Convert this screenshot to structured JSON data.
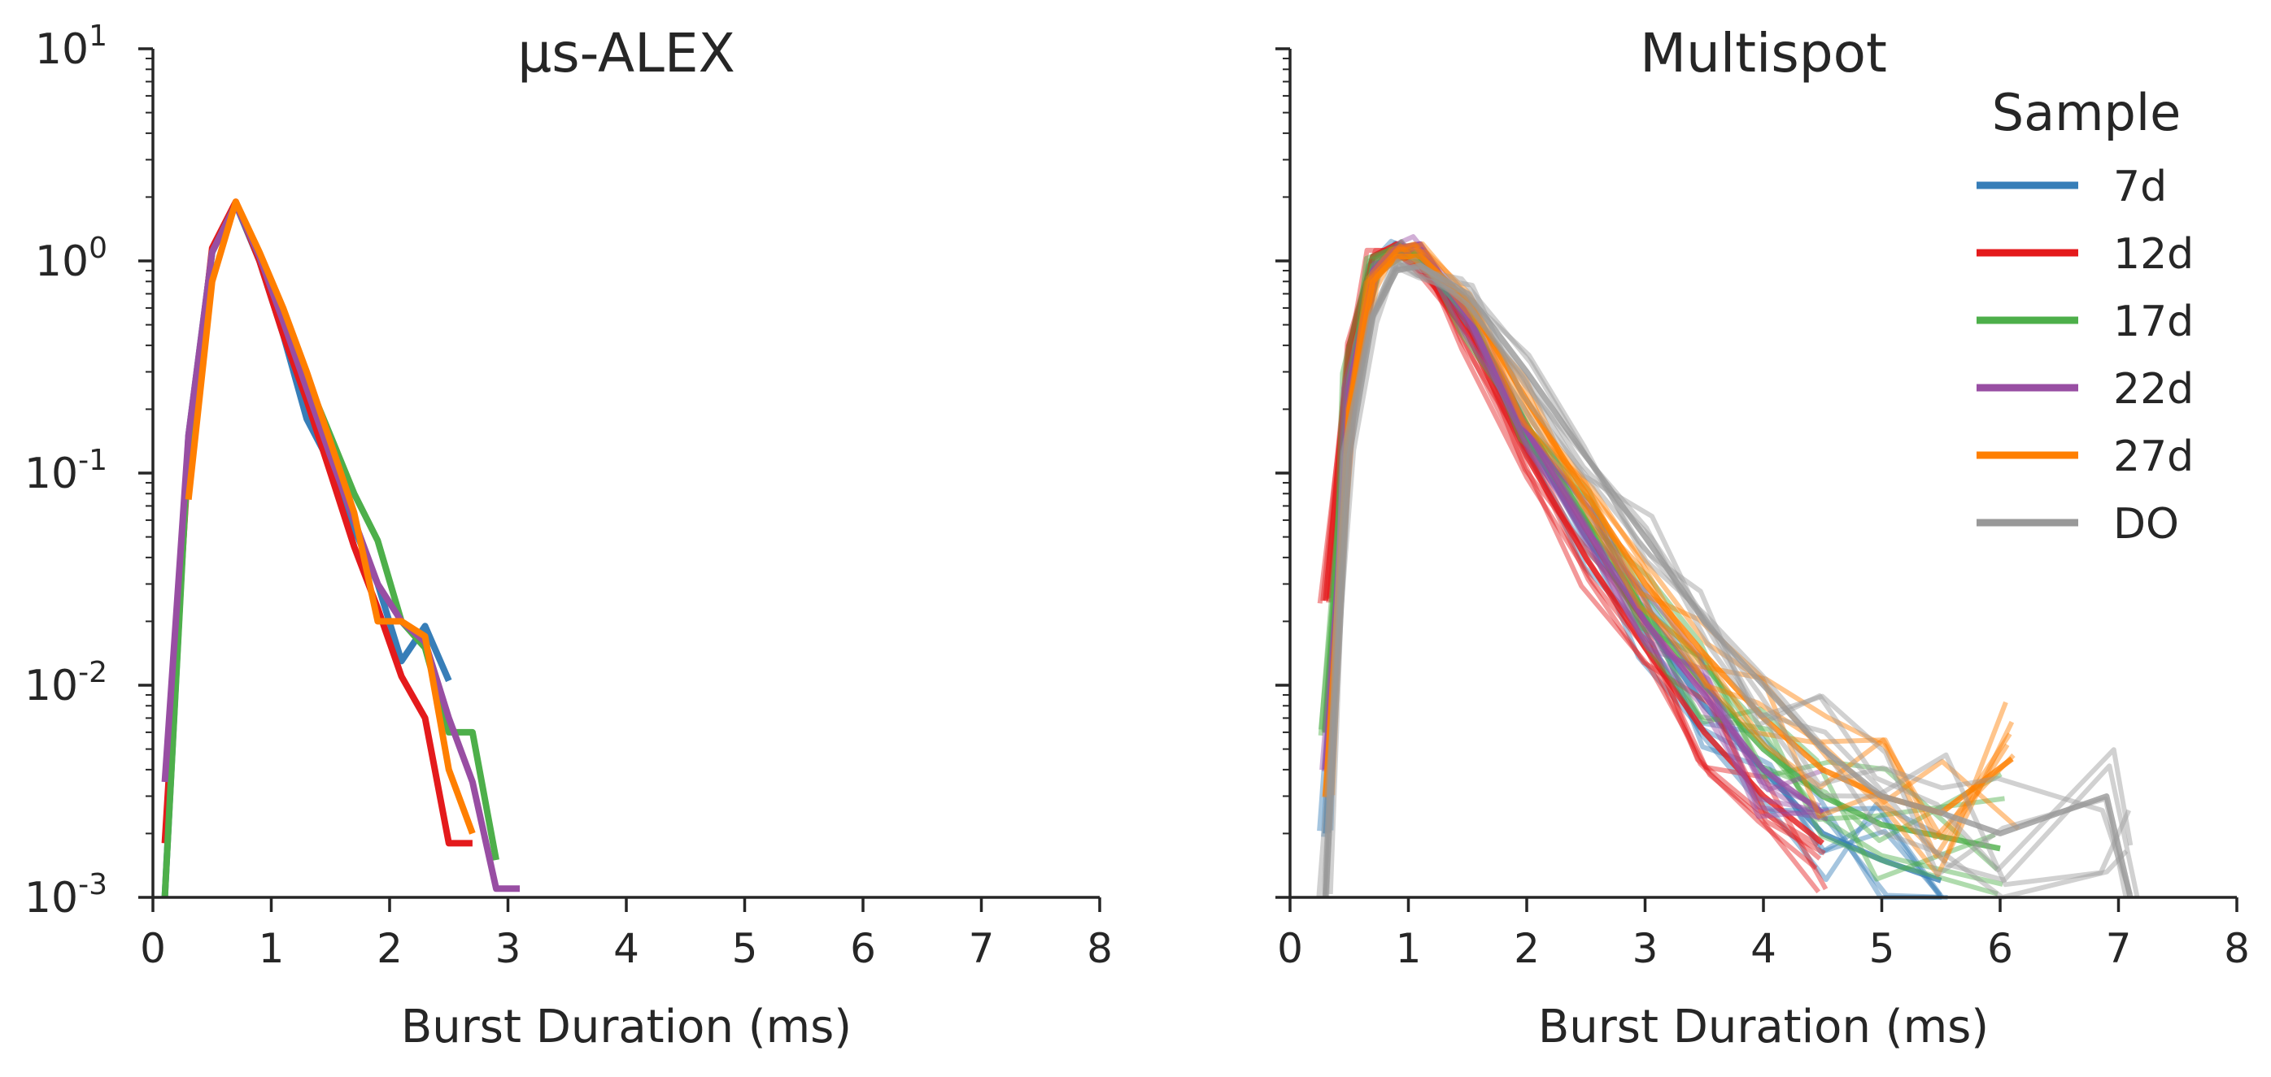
{
  "chart_data": [
    {
      "type": "line",
      "title": "μs-ALEX",
      "xlabel": "Burst Duration (ms)",
      "ylabel": "",
      "xlim": [
        0,
        8
      ],
      "ylim": [
        0.001,
        10
      ],
      "yscale": "log",
      "grid": false,
      "x_ticks": [
        "0",
        "1",
        "2",
        "3",
        "4",
        "5",
        "6",
        "7",
        "8"
      ],
      "y_ticks": [
        {
          "base": "10",
          "exp": "1"
        },
        {
          "base": "10",
          "exp": "0"
        },
        {
          "base": "10",
          "exp": "-1"
        },
        {
          "base": "10",
          "exp": "-2"
        },
        {
          "base": "10",
          "exp": "-3"
        }
      ],
      "series": [
        {
          "name": "7d",
          "color": "#377eb8",
          "points": [
            [
              0.1,
              0.001
            ],
            [
              0.3,
              0.15
            ],
            [
              0.5,
              1.1
            ],
            [
              0.7,
              1.85
            ],
            [
              0.9,
              1.0
            ],
            [
              1.1,
              0.45
            ],
            [
              1.3,
              0.18
            ],
            [
              1.5,
              0.11
            ],
            [
              1.7,
              0.055
            ],
            [
              1.9,
              0.03
            ],
            [
              2.1,
              0.013
            ],
            [
              2.3,
              0.019
            ],
            [
              2.5,
              0.0105
            ]
          ]
        },
        {
          "name": "12d",
          "color": "#e41a1c",
          "points": [
            [
              0.1,
              0.0018
            ],
            [
              0.3,
              0.12
            ],
            [
              0.5,
              1.15
            ],
            [
              0.7,
              1.9
            ],
            [
              0.9,
              1.0
            ],
            [
              1.1,
              0.45
            ],
            [
              1.3,
              0.22
            ],
            [
              1.5,
              0.1
            ],
            [
              1.7,
              0.045
            ],
            [
              1.9,
              0.023
            ],
            [
              2.1,
              0.011
            ],
            [
              2.3,
              0.007
            ],
            [
              2.5,
              0.0018
            ],
            [
              2.7,
              0.0018
            ]
          ]
        },
        {
          "name": "17d",
          "color": "#4daf4a",
          "points": [
            [
              0.1,
              0.001
            ],
            [
              0.3,
              0.14
            ],
            [
              0.5,
              1.1
            ],
            [
              0.7,
              1.85
            ],
            [
              0.9,
              1.05
            ],
            [
              1.1,
              0.55
            ],
            [
              1.3,
              0.28
            ],
            [
              1.5,
              0.15
            ],
            [
              1.7,
              0.08
            ],
            [
              1.9,
              0.048
            ],
            [
              2.1,
              0.02
            ],
            [
              2.3,
              0.015
            ],
            [
              2.5,
              0.006
            ],
            [
              2.7,
              0.006
            ],
            [
              2.9,
              0.0015
            ]
          ]
        },
        {
          "name": "22d",
          "color": "#984ea3",
          "points": [
            [
              0.1,
              0.0035
            ],
            [
              0.3,
              0.15
            ],
            [
              0.5,
              1.1
            ],
            [
              0.7,
              1.85
            ],
            [
              0.9,
              1.05
            ],
            [
              1.1,
              0.52
            ],
            [
              1.3,
              0.25
            ],
            [
              1.5,
              0.12
            ],
            [
              1.7,
              0.06
            ],
            [
              1.9,
              0.03
            ],
            [
              2.1,
              0.02
            ],
            [
              2.3,
              0.016
            ],
            [
              2.5,
              0.007
            ],
            [
              2.7,
              0.0035
            ],
            [
              2.9,
              0.0011
            ],
            [
              3.1,
              0.0011
            ]
          ]
        },
        {
          "name": "27d",
          "color": "#ff7f00",
          "points": [
            [
              0.3,
              0.075
            ],
            [
              0.5,
              0.8
            ],
            [
              0.7,
              1.9
            ],
            [
              0.9,
              1.1
            ],
            [
              1.1,
              0.6
            ],
            [
              1.3,
              0.3
            ],
            [
              1.5,
              0.14
            ],
            [
              1.7,
              0.065
            ],
            [
              1.9,
              0.02
            ],
            [
              2.1,
              0.02
            ],
            [
              2.3,
              0.017
            ],
            [
              2.5,
              0.004
            ],
            [
              2.7,
              0.002
            ]
          ]
        }
      ]
    },
    {
      "type": "line",
      "title": "Multispot",
      "xlabel": "Burst Duration (ms)",
      "ylabel": "",
      "xlim": [
        0,
        8
      ],
      "ylim": [
        0.001,
        10
      ],
      "yscale": "log",
      "grid": false,
      "x_ticks": [
        "0",
        "1",
        "2",
        "3",
        "4",
        "5",
        "6",
        "7",
        "8"
      ],
      "legend": {
        "title": "Sample",
        "position": "top-right",
        "entries": [
          "7d",
          "12d",
          "17d",
          "22d",
          "27d",
          "DO"
        ]
      },
      "series": [
        {
          "name": "7d",
          "color": "#377eb8",
          "points": [
            [
              0.3,
              0.002
            ],
            [
              0.5,
              0.22
            ],
            [
              0.7,
              0.9
            ],
            [
              0.9,
              1.1
            ],
            [
              1.1,
              0.95
            ],
            [
              1.5,
              0.5
            ],
            [
              2.0,
              0.15
            ],
            [
              2.5,
              0.05
            ],
            [
              3.0,
              0.02
            ],
            [
              3.5,
              0.008
            ],
            [
              4.0,
              0.004
            ],
            [
              4.5,
              0.002
            ],
            [
              5.0,
              0.0015
            ],
            [
              5.5,
              0.0012
            ]
          ]
        },
        {
          "name": "12d",
          "color": "#e41a1c",
          "points": [
            [
              0.3,
              0.025
            ],
            [
              0.5,
              0.4
            ],
            [
              0.7,
              1.05
            ],
            [
              0.9,
              1.2
            ],
            [
              1.1,
              0.95
            ],
            [
              1.5,
              0.45
            ],
            [
              2.0,
              0.12
            ],
            [
              2.5,
              0.04
            ],
            [
              3.0,
              0.015
            ],
            [
              3.5,
              0.006
            ],
            [
              4.0,
              0.003
            ],
            [
              4.5,
              0.0018
            ]
          ]
        },
        {
          "name": "17d",
          "color": "#4daf4a",
          "points": [
            [
              0.3,
              0.006
            ],
            [
              0.5,
              0.28
            ],
            [
              0.7,
              0.95
            ],
            [
              0.9,
              1.1
            ],
            [
              1.1,
              1.0
            ],
            [
              1.5,
              0.55
            ],
            [
              2.0,
              0.17
            ],
            [
              2.5,
              0.06
            ],
            [
              3.0,
              0.022
            ],
            [
              3.5,
              0.01
            ],
            [
              4.0,
              0.005
            ],
            [
              4.5,
              0.003
            ],
            [
              5.0,
              0.0022
            ],
            [
              6.0,
              0.0017
            ]
          ]
        },
        {
          "name": "22d",
          "color": "#984ea3",
          "points": [
            [
              0.3,
              0.004
            ],
            [
              0.5,
              0.25
            ],
            [
              0.7,
              0.9
            ],
            [
              0.9,
              1.15
            ],
            [
              1.1,
              1.2
            ],
            [
              1.5,
              0.55
            ],
            [
              2.0,
              0.16
            ],
            [
              2.5,
              0.055
            ],
            [
              3.0,
              0.02
            ],
            [
              3.5,
              0.009
            ],
            [
              4.0,
              0.004
            ],
            [
              4.5,
              0.0025
            ]
          ]
        },
        {
          "name": "27d",
          "color": "#ff7f00",
          "points": [
            [
              0.3,
              0.003
            ],
            [
              0.5,
              0.2
            ],
            [
              0.7,
              0.8
            ],
            [
              0.9,
              1.05
            ],
            [
              1.1,
              1.05
            ],
            [
              1.5,
              0.65
            ],
            [
              2.0,
              0.22
            ],
            [
              2.5,
              0.08
            ],
            [
              3.0,
              0.03
            ],
            [
              3.5,
              0.014
            ],
            [
              4.0,
              0.007
            ],
            [
              4.5,
              0.004
            ],
            [
              5.0,
              0.003
            ],
            [
              5.5,
              0.0025
            ],
            [
              6.1,
              0.0045
            ]
          ]
        },
        {
          "name": "DO",
          "color": "#999999",
          "points": [
            [
              0.3,
              0.001
            ],
            [
              0.5,
              0.12
            ],
            [
              0.7,
              0.55
            ],
            [
              0.9,
              0.9
            ],
            [
              1.1,
              0.95
            ],
            [
              1.5,
              0.7
            ],
            [
              2.0,
              0.3
            ],
            [
              2.5,
              0.12
            ],
            [
              3.0,
              0.05
            ],
            [
              3.5,
              0.02
            ],
            [
              4.0,
              0.01
            ],
            [
              4.5,
              0.005
            ],
            [
              5.0,
              0.003
            ],
            [
              5.5,
              0.0025
            ],
            [
              6.0,
              0.002
            ],
            [
              6.9,
              0.003
            ],
            [
              7.1,
              0.001
            ]
          ]
        }
      ]
    }
  ]
}
